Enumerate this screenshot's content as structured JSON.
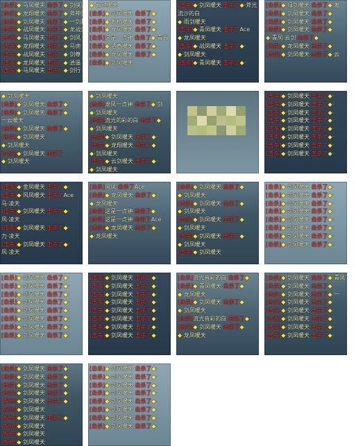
{
  "tiles": [
    {
      "lines": [
        "[击杀]◆·马凤暖夫 击杀了◆·剑侠凌",
        "[击杀]◆·龙翔暖天 击杀了◆·斧神剑",
        "[击杀]◆·剑凤暖夫 击杀了◆·一剑封",
        "[击杀]◆·战凤暖天 击杀了◆·龙战天",
        "[击杀]◆·马凤暖夫 击杀了◆·剑凤",
        "[击杀]◆·龙翔暖天 击杀了◆·马虎",
        "[击杀]◆·战凤暖夫 击杀了◆·剑尊",
        "[击杀]◆·龙凤暖天 击杀了◆·逍遥",
        "[击杀]◆·马凤暖夫 击杀了◆·剑行"
      ]
    },
    {
      "lines": [
        "◆·云动暖天",
        "[击杀]◆·剑凤暖天 击杀了◆·",
        "[击杀]◆·断桥暖天 击杀了◆",
        "[击杀]◆·龙凤暖天 击杀了◆·",
        "[击杀]这是一点钟 击杀了◆·青云",
        "[击杀]◆·酒香暖天 击杀了◆·",
        "[击杀]◆·龙凤暖天 击杀了◆",
        "[击杀]◆·剑凤暖天"
      ]
    },
    {
      "lines": [
        "[击杀]◆·剑凤暖天 击杀了◆·斧光",
        "流沙的白",
        "◆·雨剑暖天",
        "[击杀]◆·青凤暖天 击杀了Ace",
        "◆·龙凤暖天",
        "[击杀]◆·战凤暖天 击杀了◆·",
        "◆·剑凤暖天",
        "[击杀]◆·青凤暖天 击杀了◆·"
      ]
    },
    {
      "lines": [
        "[击杀]◆·绿剑暖天 击杀了◆·发",
        "[击杀]◆·剑凤暖天 击杀了◆·",
        "[击杀]◆·剑凤暖天 击杀了◆·",
        "[击杀]◆·剑凤暖天 击杀了◆·",
        "◆·青凤·云剑 击杀了◆",
        "[击杀]◆·龙凤暖天 击杀了◆·",
        "[击杀]◆·剑凤暖天 击杀了◆·云"
      ]
    },
    {
      "lines": [
        "◆·剑凤暖天",
        "[击杀]◆·剑凤暖天 击杀了◆·",
        "[击杀]◆·剑凤暖天 击杀了◆·",
        "一云暖天",
        "[击杀]◆·剑凤暖天 击杀了◆·",
        "[击杀]◆·剑凤暖天",
        "◆·剑凤暖天",
        "[击杀]◆·剑凤暖天 击杀了",
        "◆·剑凤暖天"
      ]
    },
    {
      "lines": [
        "◆·剑凤暖天",
        "[击杀]龙凤一点钟 击杀了◆·剑",
        "◆·剑凤暖天",
        "[击杀]流光的彩的白 击杀了◆·",
        "◆·剑凤暖天",
        "[击杀]◆·剑凤暖天 击杀了◆·",
        "[击杀]◆·龙翔暖天 击杀了◆",
        "◆·剑凤暖天",
        "[击杀]◆·云剑暖天 击杀了◆·",
        "◆·剑凤暖天"
      ]
    },
    {
      "lines": []
    },
    {
      "lines": [
        "[击杀]◆·剑凤暖天 击杀了◆·",
        "[击杀]◆·剑凤暖天 击杀了◆·",
        "[击杀]◆·剑凤暖天 击杀了◆·",
        "[击杀]◆·剑凤暖天 击杀了◆·",
        "[击杀]◆·剑凤暖天 击杀了◆·",
        "[击杀]◆·剑凤暖天 击杀了◆·",
        "[击杀]◆·剑凤暖天 击杀了◆·",
        "[击杀]◆·剑凤暖天 击杀了◆·"
      ]
    },
    {
      "lines": [
        "[击杀]◆·金凤暖天 击杀了◆·",
        "[击杀]◆·风凤暖天 击杀了Ace",
        "马·凌天",
        "[击杀]◆·剑凤暖天 击杀了◆·",
        "风·凌天",
        "[击杀]◆·剑凤暖天 击杀了◆·",
        "力·凌天",
        "[击杀]◆·剑凤暖天 击杀了◆·",
        "风·凌天"
      ]
    },
    {
      "lines": [
        "[击杀]风凤 击杀了Ace",
        "[击杀]◆·龙凤暖天 击杀了◆·",
        "◆·龙凤暖天",
        "[击杀]这是一点钟 击杀了◆·",
        "[击杀]这是一点钟 击杀了Ace",
        "[击杀]◆·龙凤暖天 击杀了◆·",
        "◆·龙凤暖天"
      ]
    },
    {
      "lines": [
        "[击杀]◆·剑凤暖天 击杀了◆·",
        "◆·剑凤暖天",
        "[击杀]◆·剑凤暖天 击杀了◆·",
        "◆·剑凤暖天",
        "[击杀]◆·剑凤暖天 击杀了◆·",
        "◆·剑凤暖天",
        "[击杀]◆·剑凤暖天 击杀了◆·",
        "◆·剑凤暖天",
        "[击杀]◆·剑凤暖天"
      ]
    },
    {
      "lines": [
        "[击杀]◆·剑凤暖天 击杀了◆·",
        "[击杀]◆·剑凤暖天 击杀了◆·",
        "[击杀]◆·剑凤暖天 击杀了◆·",
        "[击杀]◆·剑凤暖天 击杀了◆·",
        "[击杀]◆·剑凤暖天 击杀了◆·",
        "[击杀]◆·剑凤暖天 击杀了◆·",
        "[击杀]◆·剑凤暖天 击杀了◆·",
        "[击杀]◆·剑凤暖天 击杀了◆·"
      ]
    },
    {
      "lines": [
        "[击杀]◆·剑凤暖天 击杀了◆·",
        "[击杀]◆·剑凤暖天 击杀了◆·",
        "[击杀]◆·剑凤暖天 击杀了◆·",
        "[击杀]◆·剑凤暖天 击杀了◆·",
        "[击杀]◆·剑凤暖天 击杀了◆·",
        "[击杀]◆·剑凤暖天 击杀了◆·",
        "[击杀]◆·剑凤暖天 击杀了◆·",
        "[击杀]◆·剑凤暖天 击杀了◆·"
      ]
    },
    {
      "lines": [
        "[击杀]◆·剑凤暖天 击杀了◆·",
        "[击杀]◆·剑凤暖天 击杀了◆·",
        "[击杀]◆·剑凤暖天 击杀了◆·",
        "[击杀]◆·剑凤暖天 击杀了◆·",
        "[击杀]◆·剑凤暖天 击杀了◆·",
        "[击杀]◆·剑凤暖天 击杀了◆·",
        "[击杀]◆·剑凤暖天 击杀了◆·",
        "[击杀]◆·剑凤暖天 击杀了◆·"
      ]
    },
    {
      "lines": [
        "[击杀]流光音彩的白 击杀了◆·",
        "[击杀]◆·青凤暖天 击杀了◆·",
        "◆·龙凤暖天",
        "[击杀]◆·剑凤暖天 击杀了◆·",
        "◆·剑凤暖天",
        "[击杀]流光音彩的白 击杀了◆·",
        "[击杀]◆·剑凤暖天 击杀了◆·",
        "◆·龙凤暖天"
      ]
    },
    {
      "lines": [
        "[击杀]◆·剑凤暖天 击杀了◆·青凤",
        "[击杀]◆·剑凤暖天 击杀了◆·",
        "[击杀]◆·剑凤暖天 击杀了◆·一",
        "[击杀]◆·剑凤暖天 击杀了◆·",
        "[击杀]◆·剑凤暖天 击杀了◆·",
        "[击杀]◆·剑凤暖天 击杀了◆·",
        "[击杀]◆·剑凤暖天 击杀了◆·",
        "[击杀]◆·剑凤暖天 击杀了◆·"
      ]
    },
    {
      "lines": [
        "[击杀]◆·剑凤暖天 击杀了◆·",
        "[击杀]◆·剑凤暖天 击杀了◆·",
        "[击杀]◆·剑凤暖天 击杀了◆·",
        "[击杀]◆·剑凤暖天 击杀了◆·",
        "[系统]◆·剑凤暖天 击杀了◆",
        "[系统]◆·剑凤暖天",
        "[系统]◆·剑凤暖天 击杀了◆·",
        "[系统]◆·剑凤暖天",
        "[系统]◆·剑凤暖天",
        "[系统]◆·剑凤暖天"
      ]
    },
    {
      "lines": [
        "[击杀]◆·剑凤暖天 击杀了◆·",
        "[击杀]◆·剑凤暖天 击杀了◆·",
        "[击杀]◆·剑凤暖天 击杀了◆·",
        "[击杀]◆·剑凤暖天 击杀了◆·",
        "[击杀]◆·剑凤暖天 击杀了◆·",
        "[击杀]◆·剑凤暖天 击杀了◆·",
        "[击杀]◆·剑凤暖天 击杀了◆·",
        "[击杀]◆·剑凤暖天 击杀了◆·"
      ]
    }
  ]
}
